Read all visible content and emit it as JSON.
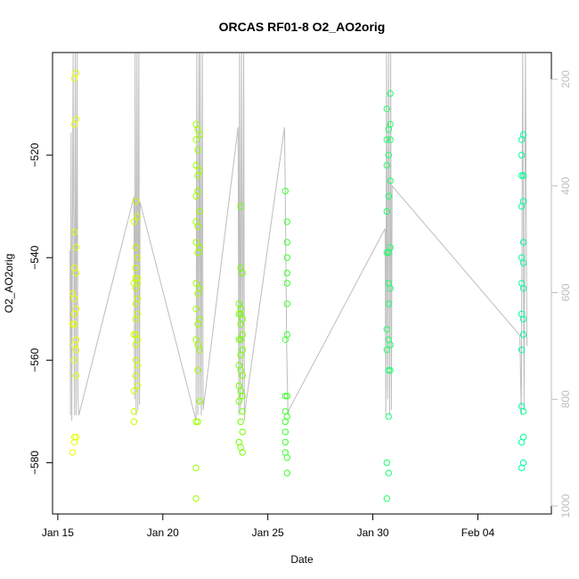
{
  "chart_data": {
    "type": "scatter",
    "title": "ORCAS RF01-8 O2_AO2orig",
    "xlabel": "Date",
    "ylabel": "O2_AO2orig",
    "x_ticks": [
      {
        "date": "2016-01-15",
        "label": "Jan 15"
      },
      {
        "date": "2016-01-20",
        "label": "Jan 20"
      },
      {
        "date": "2016-01-25",
        "label": "Jan 25"
      },
      {
        "date": "2016-01-30",
        "label": "Jan 30"
      },
      {
        "date": "2016-02-04",
        "label": "Feb 04"
      }
    ],
    "xlim": [
      "2016-01-14T18:00",
      "2016-02-07T12:00"
    ],
    "ylim": [
      -590,
      -500
    ],
    "y_ticks": [
      -580,
      -560,
      -540,
      -520
    ],
    "y2_label": "",
    "y2_ticks": [
      200,
      400,
      600,
      800,
      1000
    ],
    "y2_lim": [
      1015,
      150
    ],
    "y2_reversed": true,
    "grid": false,
    "colors": {
      "altitude_line": "#bdbdbd",
      "flight_colors": [
        "#e6ff00",
        "#c6ff00",
        "#9cff00",
        "#74ff00",
        "#3dff2e",
        "#1eff6c",
        "#00ff9a",
        "#00ffc4"
      ]
    },
    "flights": [
      {
        "segments": [
          {
            "t0": "2016-01-15T14:00",
            "t1": "2016-01-16T00:00",
            "p": [
              [
                0,
                520
              ],
              [
                0.05,
                830
              ],
              [
                0.12,
                300
              ],
              [
                0.2,
                840
              ],
              [
                0.35,
                150
              ],
              [
                0.5,
                830
              ],
              [
                0.6,
                150
              ],
              [
                0.7,
                830
              ],
              [
                0.8,
                150
              ],
              [
                0.9,
                800
              ],
              [
                1,
                830
              ]
            ]
          }
        ],
        "points": [
          {
            "t": "2016-01-15T17:00",
            "y": [
              -547,
              -553,
              -578
            ]
          },
          {
            "t": "2016-01-15T19:00",
            "y": [
              -505,
              -514,
              -535,
              -542,
              -548,
              -551,
              -553,
              -557,
              -560,
              -575,
              -576
            ]
          },
          {
            "t": "2016-01-15T21:00",
            "y": [
              -504,
              -513,
              -538,
              -543,
              -550,
              -556,
              -558,
              -563,
              -575
            ]
          }
        ]
      },
      {
        "segments": [
          {
            "t0": "2016-01-18T15:00",
            "t1": "2016-01-18T22:00",
            "p": [
              [
                0,
                420
              ],
              [
                0.1,
                800
              ],
              [
                0.2,
                150
              ],
              [
                0.35,
                830
              ],
              [
                0.5,
                150
              ],
              [
                0.65,
                820
              ],
              [
                0.8,
                150
              ],
              [
                0.9,
                810
              ],
              [
                1,
                430
              ]
            ]
          }
        ],
        "points": [
          {
            "t": "2016-01-18T15:00",
            "y": [
              -533,
              -545,
              -555,
              -566,
              -570,
              -572
            ]
          },
          {
            "t": "2016-01-18T17:00",
            "y": [
              -529,
              -538,
              -542,
              -544,
              -546,
              -549,
              -552,
              -555,
              -557,
              -560,
              -563
            ]
          },
          {
            "t": "2016-01-18T19:00",
            "y": [
              -532,
              -540,
              -544,
              -545,
              -548,
              -551,
              -556,
              -561,
              -565
            ]
          }
        ]
      },
      {
        "segments": [
          {
            "t0": "2016-01-21T14:00",
            "t1": "2016-01-21T22:00",
            "p": [
              [
                0,
                840
              ],
              [
                0.1,
                150
              ],
              [
                0.25,
                830
              ],
              [
                0.4,
                150
              ],
              [
                0.5,
                810
              ],
              [
                0.6,
                150
              ],
              [
                0.75,
                830
              ],
              [
                0.9,
                150
              ],
              [
                1,
                820
              ]
            ]
          }
        ],
        "points": [
          {
            "t": "2016-01-21T14:00",
            "y": [
              -514,
              -517,
              -522,
              -528,
              -533,
              -537,
              -545,
              -550,
              -556,
              -572,
              -581,
              -587
            ]
          },
          {
            "t": "2016-01-21T16:00",
            "y": [
              -515,
              -519,
              -524,
              -527,
              -534,
              -539,
              -547,
              -553,
              -557,
              -562,
              -572
            ]
          },
          {
            "t": "2016-01-21T18:00",
            "y": [
              -516,
              -523,
              -531,
              -538,
              -546,
              -552,
              -558,
              -568
            ]
          }
        ]
      },
      {
        "segments": [
          {
            "t0": "2016-01-23T14:00",
            "t1": "2016-01-23T22:00",
            "p": [
              [
                0,
                290
              ],
              [
                0.1,
                830
              ],
              [
                0.2,
                150
              ],
              [
                0.35,
                820
              ],
              [
                0.5,
                150
              ],
              [
                0.65,
                800
              ],
              [
                0.8,
                150
              ],
              [
                0.9,
                840
              ],
              [
                1,
                820
              ]
            ]
          }
        ],
        "points": [
          {
            "t": "2016-01-23T15:00",
            "y": [
              -549,
              -551,
              -556,
              -561,
              -565,
              -568,
              -576
            ]
          },
          {
            "t": "2016-01-23T17:00",
            "y": [
              -530,
              -542,
              -550,
              -551,
              -553,
              -556,
              -559,
              -562,
              -566,
              -572,
              -577
            ]
          },
          {
            "t": "2016-01-23T19:00",
            "y": [
              -543,
              -552,
              -555,
              -558,
              -563,
              -567,
              -570,
              -574,
              -578
            ]
          }
        ]
      },
      {
        "segments": [
          {
            "t0": "2016-01-25T19:00",
            "t1": "2016-01-26T00:00",
            "p": [
              [
                0,
                290
              ],
              [
                0.2,
                420
              ],
              [
                0.5,
                700
              ],
              [
                0.8,
                830
              ],
              [
                1,
                820
              ]
            ]
          }
        ],
        "points": [
          {
            "t": "2016-01-25T20:00",
            "y": [
              -527,
              -556,
              -567,
              -570,
              -572,
              -574,
              -576,
              -578
            ]
          },
          {
            "t": "2016-01-25T22:00",
            "y": [
              -533,
              -537,
              -540,
              -543,
              -545,
              -549,
              -555,
              -567,
              -571,
              -579,
              -582
            ]
          }
        ]
      },
      {
        "segments": [
          {
            "t0": "2016-01-30T14:00",
            "t1": "2016-01-30T22:00",
            "p": [
              [
                0,
                480
              ],
              [
                0.1,
                830
              ],
              [
                0.2,
                150
              ],
              [
                0.35,
                800
              ],
              [
                0.5,
                150
              ],
              [
                0.65,
                830
              ],
              [
                0.8,
                150
              ],
              [
                0.9,
                820
              ],
              [
                1,
                400
              ]
            ]
          }
        ],
        "points": [
          {
            "t": "2016-01-30T16:00",
            "y": [
              -511,
              -517,
              -522,
              -531,
              -539,
              -554,
              -558,
              -580,
              -587
            ]
          },
          {
            "t": "2016-01-30T18:00",
            "y": [
              -515,
              -520,
              -528,
              -539,
              -545,
              -549,
              -556,
              -562,
              -571,
              -582
            ]
          },
          {
            "t": "2016-01-30T20:00",
            "y": [
              -508,
              -514,
              -517,
              -525,
              -538,
              -546,
              -557,
              -562
            ]
          }
        ]
      },
      {
        "segments": [
          {
            "t0": "2016-02-06T00:00",
            "t1": "2016-02-06T08:00",
            "p": [
              [
                0,
                680
              ],
              [
                0.2,
                830
              ],
              [
                0.4,
                150
              ],
              [
                0.6,
                820
              ],
              [
                0.8,
                150
              ],
              [
                1,
                700
              ]
            ]
          }
        ],
        "points": [
          {
            "t": "2016-02-06T02:00",
            "y": [
              -517,
              -520,
              -524,
              -530,
              -540,
              -545,
              -551,
              -558,
              -569,
              -576,
              -581
            ]
          },
          {
            "t": "2016-02-06T04:00",
            "y": [
              -516,
              -524,
              -529,
              -537,
              -541,
              -546,
              -552,
              -555,
              -570,
              -575,
              -580
            ]
          }
        ]
      }
    ]
  }
}
